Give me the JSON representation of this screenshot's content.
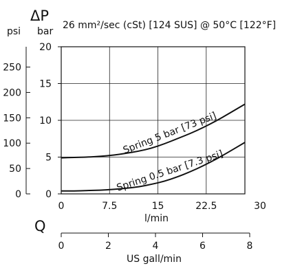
{
  "chart_data": {
    "type": "line",
    "title": "26 mm²/sec (cSt) [124 SUS] @ 50°C [122°F]",
    "y_symbol": "ΔP",
    "x_symbol": "Q",
    "y_units": {
      "primary": "bar",
      "secondary": "psi"
    },
    "x_units": {
      "primary": "l/min",
      "secondary": "US gall/min"
    },
    "xlim": [
      0,
      28.5
    ],
    "ylim": [
      0,
      20
    ],
    "x_ticks": [
      0,
      7.5,
      15,
      22.5
    ],
    "x_tick_labels": [
      "0",
      "7.5",
      "15",
      "22.5"
    ],
    "x_overflow_label": "30",
    "y_ticks": [
      0,
      5,
      10,
      15,
      20
    ],
    "y_tick_labels": [
      "0",
      "5",
      "10",
      "15",
      "20"
    ],
    "psi_ticks": [
      0,
      50,
      100,
      150,
      200,
      250
    ],
    "psi_tick_labels": [
      "0",
      "50",
      "100",
      "150",
      "200",
      "250"
    ],
    "gpm_ticks": [
      0,
      2,
      4,
      6,
      8
    ],
    "gpm_tick_labels": [
      "0",
      "2",
      "4",
      "6",
      "8"
    ],
    "grid": true,
    "series": [
      {
        "name": "Spring 5 bar [73 psi]",
        "x": [
          0,
          2,
          4,
          6,
          8,
          10,
          12,
          14,
          16,
          18,
          20,
          22,
          24,
          26,
          28.5
        ],
        "y": [
          4.9,
          4.95,
          5.0,
          5.1,
          5.25,
          5.5,
          5.8,
          6.2,
          6.8,
          7.5,
          8.2,
          9.0,
          9.9,
          10.9,
          12.2
        ]
      },
      {
        "name": "Spring 0.5 bar [7.3 psi]",
        "x": [
          0,
          2,
          4,
          6,
          8,
          10,
          12,
          14,
          16,
          18,
          20,
          22,
          24,
          26,
          28.5
        ],
        "y": [
          0.4,
          0.4,
          0.45,
          0.5,
          0.6,
          0.75,
          0.95,
          1.3,
          1.7,
          2.3,
          3.0,
          3.8,
          4.7,
          5.7,
          7.0
        ]
      }
    ]
  }
}
